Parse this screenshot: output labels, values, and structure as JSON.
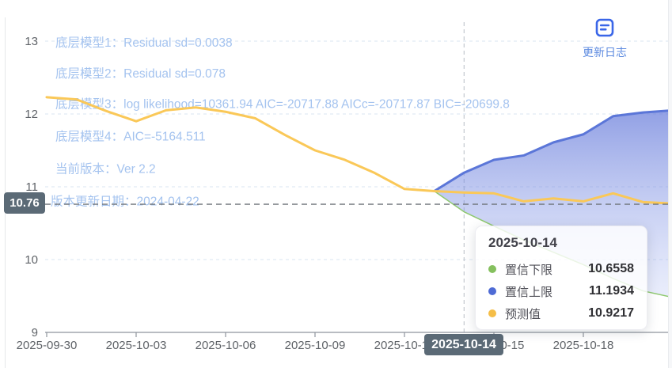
{
  "header": {
    "update_log": {
      "label": "更新日志",
      "icon": "changelog-icon",
      "icon_color": "#3a66e8",
      "label_color": "#5e8be0"
    }
  },
  "annotations": [
    "底层模型1：Residual sd=0.0038",
    "底层模型2：Residual sd=0.078",
    "底层模型3：log likelihood=10361.94 AIC=-20717.88 AICc=-20717.87 BIC=-20699.8",
    "底层模型4：AIC=-5164.511",
    "当前版本：Ver 2.2",
    "版本更新日期：2024-04-22"
  ],
  "badges": {
    "y_axis_value": "10.76",
    "x_axis_date": "2025-10-14",
    "background": "#5b6a76"
  },
  "tooltip": {
    "title": "2025-10-14",
    "rows": [
      {
        "label": "置信下限",
        "value": "10.6558",
        "color": "#85c05e"
      },
      {
        "label": "置信上限",
        "value": "11.1934",
        "color": "#4e6bd5"
      },
      {
        "label": "预测值",
        "value": "10.9217",
        "color": "#f5be48"
      }
    ]
  },
  "chart_data": {
    "type": "line",
    "title": "",
    "xlabel": "",
    "ylabel": "",
    "x_ticks": [
      {
        "day": 0,
        "label": "2025-09-30"
      },
      {
        "day": 3,
        "label": "2025-10-03"
      },
      {
        "day": 6,
        "label": "2025-10-06"
      },
      {
        "day": 9,
        "label": "2025-10-09"
      },
      {
        "day": 12,
        "label": "2025-10-12"
      },
      {
        "day": 15,
        "label": "2025-10-15"
      },
      {
        "day": 18,
        "label": "2025-10-18"
      }
    ],
    "y_ticks": [
      13,
      12,
      11,
      10,
      9
    ],
    "ylim": [
      9,
      13.3
    ],
    "xlim_days": [
      0,
      21
    ],
    "grid": "horizontal-dashed",
    "legend_position": "none",
    "series": [
      {
        "name": "预测值",
        "color": "#fac858",
        "width": 3,
        "points": [
          [
            0,
            12.23
          ],
          [
            1,
            12.2
          ],
          [
            2,
            12.04
          ],
          [
            3,
            11.9
          ],
          [
            4,
            12.05
          ],
          [
            5,
            12.09
          ],
          [
            6,
            12.03
          ],
          [
            7,
            11.94
          ],
          [
            8,
            11.71
          ],
          [
            9,
            11.5
          ],
          [
            10,
            11.37
          ],
          [
            11,
            11.19
          ],
          [
            12,
            10.97
          ],
          [
            13,
            10.94
          ],
          [
            14,
            10.9217
          ],
          [
            15,
            10.91
          ],
          [
            16,
            10.8
          ],
          [
            17,
            10.84
          ],
          [
            18,
            10.8
          ],
          [
            19,
            10.91
          ],
          [
            20,
            10.79
          ],
          [
            21,
            10.77
          ]
        ]
      },
      {
        "name": "置信上限",
        "color": "#5b76d8",
        "width": 3,
        "points": [
          [
            13,
            10.94
          ],
          [
            14,
            11.1934
          ],
          [
            15,
            11.37
          ],
          [
            16,
            11.43
          ],
          [
            17,
            11.61
          ],
          [
            18,
            11.72
          ],
          [
            19,
            11.97
          ],
          [
            20,
            12.02
          ],
          [
            21,
            12.05
          ]
        ]
      },
      {
        "name": "置信下限",
        "color": "#8fc96f",
        "width": 1.5,
        "points": [
          [
            13,
            10.94
          ],
          [
            14,
            10.6558
          ],
          [
            15,
            10.46
          ],
          [
            16,
            10.27
          ],
          [
            17,
            10.1
          ],
          [
            18,
            9.93
          ],
          [
            19,
            9.74
          ],
          [
            20,
            9.57
          ],
          [
            21,
            9.48
          ]
        ]
      }
    ],
    "band": {
      "upper": "置信上限",
      "lower": "置信下限",
      "fill_top": "rgba(93,115,216,0.68)",
      "fill_bottom": "rgba(173,187,242,0.25)"
    },
    "reference_line": {
      "value": 10.76
    },
    "crosshair_day": 14,
    "forecast_start_day": 13
  }
}
